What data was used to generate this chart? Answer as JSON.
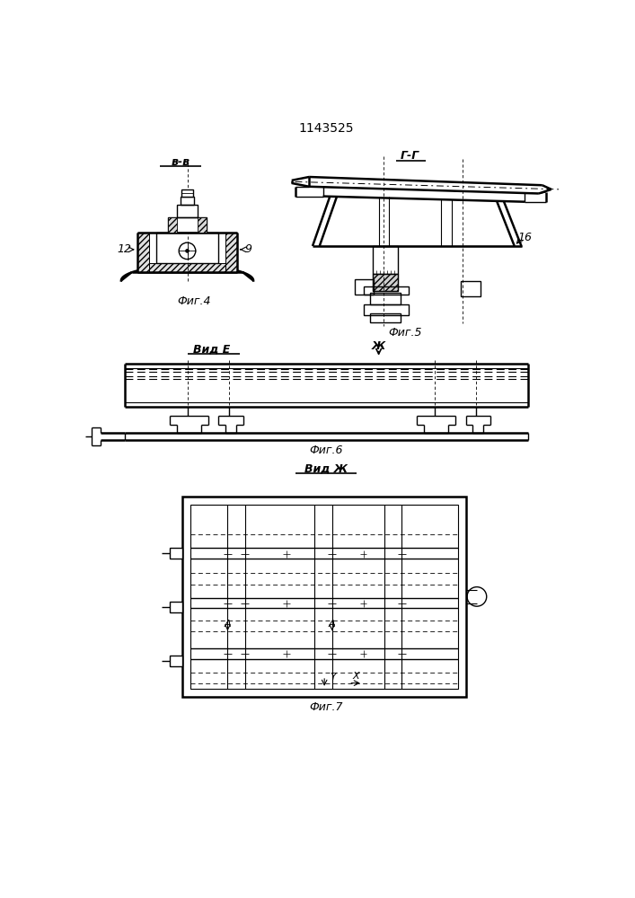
{
  "title": "1143525",
  "bg_color": "#ffffff",
  "line_color": "#000000",
  "fig4_label": "Фиг.4",
  "fig5_label": "Фиг.5",
  "fig6_label": "Фиг.6",
  "fig7_label": "Фиг.7",
  "sec_bb": "в-в",
  "sec_gg": "Г-Г",
  "sec_e": "Вид E",
  "sec_zh": "Вид Ж",
  "label_12": "12",
  "label_9": "9",
  "label_16": "16",
  "arrow_zh": "Ж"
}
